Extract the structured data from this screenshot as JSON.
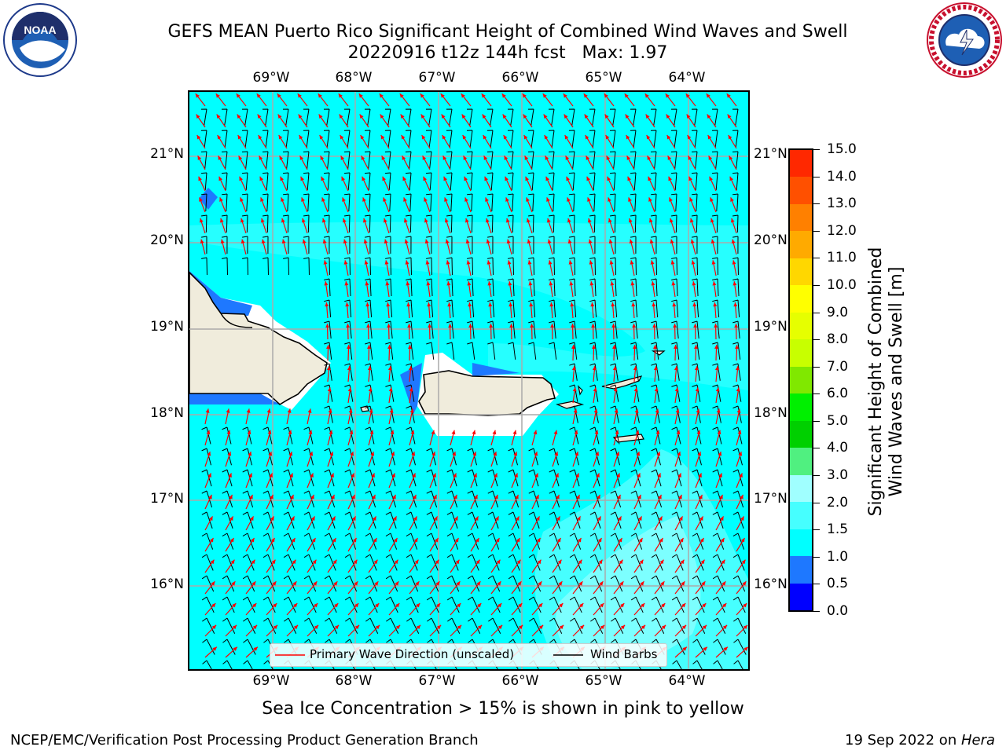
{
  "title": {
    "line1": "GEFS MEAN Puerto Rico Significant Height of Combined Wind Waves and Swell",
    "line2": "20220916 t12z 144h fcst   Max: 1.97"
  },
  "logos": {
    "left": "noaa-logo",
    "left_text": "NOAA",
    "right": "national-weather-service-logo",
    "right_text": "NATIONAL WEATHER SERVICE"
  },
  "axes": {
    "lon_labels": [
      "69°W",
      "68°W",
      "67°W",
      "66°W",
      "65°W",
      "64°W"
    ],
    "lat_labels": [
      "21°N",
      "20°N",
      "19°N",
      "18°N",
      "17°N",
      "16°N"
    ]
  },
  "colorbar": {
    "label_line1": "Significant Height of Combined",
    "label_line2": "Wind Waves and Swell [m]",
    "ticks": [
      "0.0",
      "0.5",
      "1.0",
      "1.5",
      "2.0",
      "3.0",
      "4.0",
      "5.0",
      "6.0",
      "7.0",
      "8.0",
      "9.0",
      "10.0",
      "11.0",
      "12.0",
      "13.0",
      "14.0",
      "15.0"
    ],
    "colors": [
      "#0000ff",
      "#1e78ff",
      "#00ffff",
      "#46ffff",
      "#a0ffff",
      "#50f080",
      "#00d000",
      "#00f000",
      "#80e800",
      "#c8ff00",
      "#e6ff00",
      "#ffff00",
      "#ffd700",
      "#ffaa00",
      "#ff8000",
      "#ff5000",
      "#ff2800",
      "#ff0000"
    ]
  },
  "legend": {
    "wave_label": "Primary Wave Direction (unscaled)",
    "wave_color": "#ff0000",
    "barb_label": "Wind Barbs",
    "barb_color": "#000000"
  },
  "caption": "Sea Ice Concentration > 15% is shown in pink to yellow",
  "footer": {
    "left": "NCEP/EMC/Verification Post Processing Product Generation Branch",
    "right_date": "19 Sep 2022 on ",
    "right_host": "Hera"
  },
  "map_colors": {
    "ocean": "#00ffff",
    "ocean_light": "#46ffff",
    "ocean_lighter": "#a0ffff",
    "land": "#f0ecdc",
    "shallow": "#1e78ff",
    "grid": "#aaaaaa"
  }
}
